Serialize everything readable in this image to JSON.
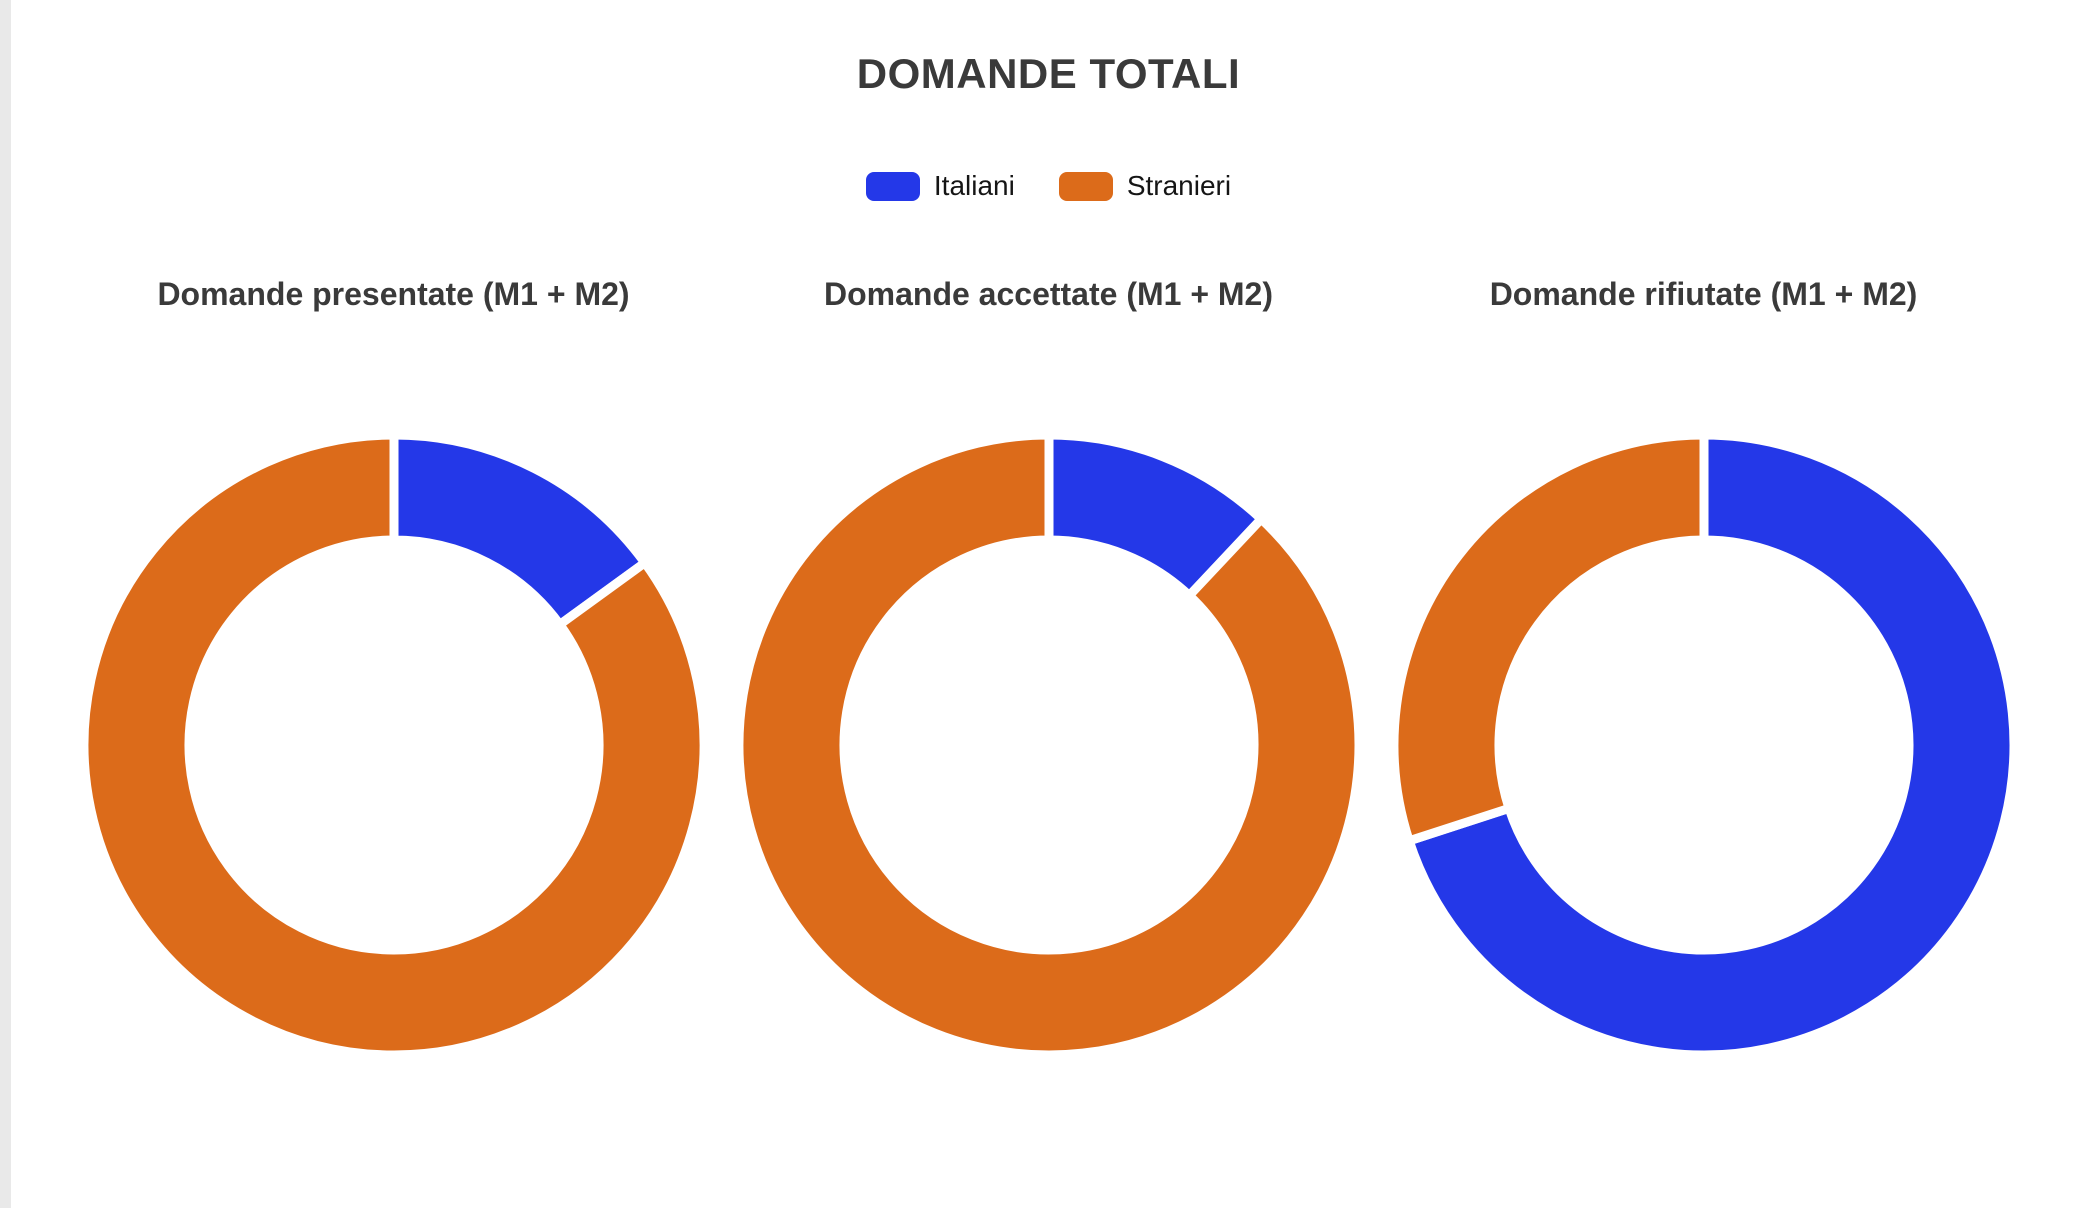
{
  "page": {
    "background": "#ffffff",
    "left_gutter_color": "#e9e9e9"
  },
  "header": {
    "title": "DOMANDE TOTALI"
  },
  "legend": {
    "position": "top-center",
    "items": [
      {
        "label": "Italiani",
        "color": "#2438E8"
      },
      {
        "label": "Stranieri",
        "color": "#DC6B1A"
      }
    ]
  },
  "chart_data": [
    {
      "type": "doughnut",
      "title": "Domande presentate (M1 + M2)",
      "labels": [
        "Italiani",
        "Stranieri"
      ],
      "values_percent": [
        15,
        85
      ],
      "colors": [
        "#2438E8",
        "#DC6B1A"
      ],
      "cutout_ratio": 0.66,
      "start_angle_deg": 0,
      "direction": "clockwise",
      "segment_border_color": "#ffffff"
    },
    {
      "type": "doughnut",
      "title": "Domande accettate (M1 + M2)",
      "labels": [
        "Italiani",
        "Stranieri"
      ],
      "values_percent": [
        12,
        88
      ],
      "colors": [
        "#2438E8",
        "#DC6B1A"
      ],
      "cutout_ratio": 0.66,
      "start_angle_deg": 0,
      "direction": "clockwise",
      "segment_border_color": "#ffffff"
    },
    {
      "type": "doughnut",
      "title": "Domande rifiutate (M1 + M2)",
      "labels": [
        "Italiani",
        "Stranieri"
      ],
      "values_percent": [
        70,
        30
      ],
      "colors": [
        "#2438E8",
        "#DC6B1A"
      ],
      "cutout_ratio": 0.66,
      "start_angle_deg": 0,
      "direction": "clockwise",
      "segment_border_color": "#ffffff"
    }
  ]
}
